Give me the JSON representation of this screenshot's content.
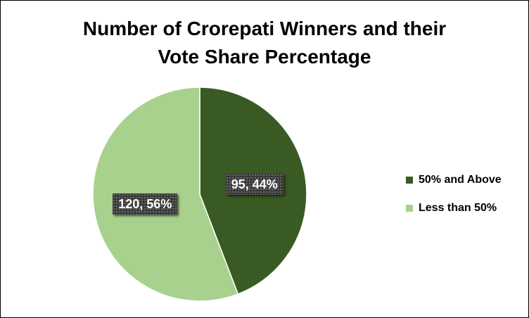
{
  "chart_data": {
    "type": "pie",
    "title_lines": [
      "Number of Crorepati Winners and their",
      "Vote Share Percentage"
    ],
    "slices": [
      {
        "label": "50% and Above",
        "value": 95,
        "percent": 44,
        "data_label": "95, 44%",
        "color": "#3a5a23"
      },
      {
        "label": "Less than 50%",
        "value": 120,
        "percent": 56,
        "data_label": "120, 56%",
        "color": "#a9d18e"
      }
    ],
    "legend_position": "right"
  }
}
